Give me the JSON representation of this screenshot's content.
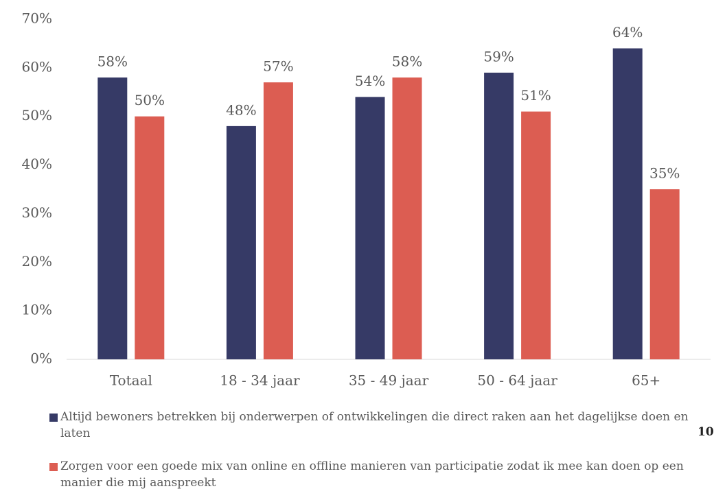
{
  "chart_data": {
    "type": "bar",
    "categories": [
      "Totaal",
      "18 - 34 jaar",
      "35 - 49 jaar",
      "50 - 64 jaar",
      "65+"
    ],
    "series": [
      {
        "name": "Altijd bewoners betrekken bij onderwerpen of ontwikkelingen die direct raken aan het dagelijkse doen en laten",
        "color": "#363a66",
        "values": [
          58,
          48,
          54,
          59,
          64
        ],
        "value_labels": [
          "58%",
          "48%",
          "54%",
          "59%",
          "64%"
        ]
      },
      {
        "name": "Zorgen voor een goede mix van online en offline manieren van participatie zodat ik mee kan doen op een manier die mij aanspreekt",
        "color": "#dc5d52",
        "values": [
          50,
          57,
          58,
          51,
          35
        ],
        "value_labels": [
          "50%",
          "57%",
          "58%",
          "51%",
          "35%"
        ]
      }
    ],
    "ylim": [
      0,
      70
    ],
    "yticks": [
      {
        "value": 0,
        "label": "0%"
      },
      {
        "value": 10,
        "label": "10%"
      },
      {
        "value": 20,
        "label": "20%"
      },
      {
        "value": 30,
        "label": "30%"
      },
      {
        "value": 40,
        "label": "40%"
      },
      {
        "value": 50,
        "label": "50%"
      },
      {
        "value": 60,
        "label": "60%"
      },
      {
        "value": 70,
        "label": "70%"
      }
    ],
    "grid": false,
    "legend": "bottom",
    "page_number": "10"
  }
}
